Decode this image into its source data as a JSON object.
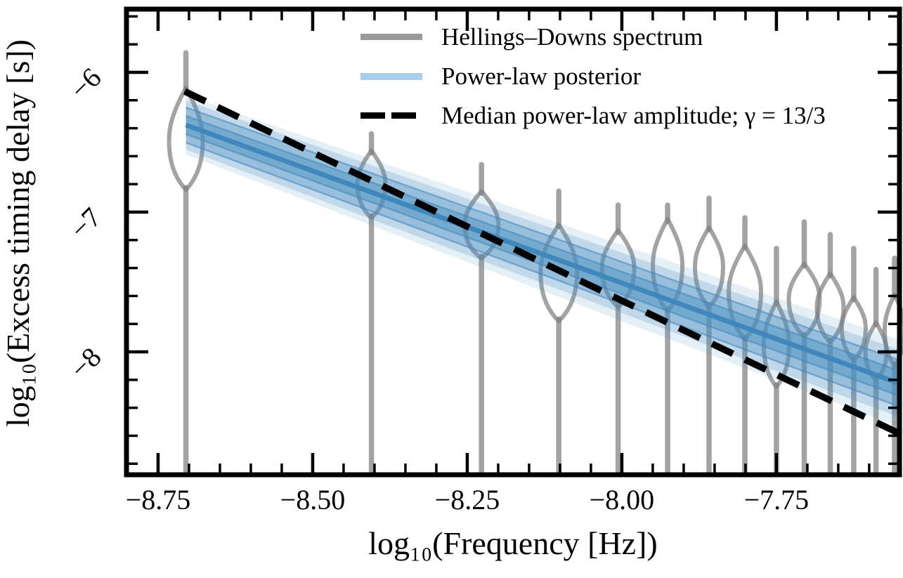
{
  "figure": {
    "background": "#ffffff"
  },
  "legend": {
    "position": "upper center",
    "items": [
      {
        "label": "Hellings–Downs spectrum",
        "swatch": "thick-gray-line",
        "color": "#9a9a9a"
      },
      {
        "label": "Power-law posterior",
        "swatch": "thick-lightblue-line",
        "color": "#aacde9"
      },
      {
        "label": "Median power-law amplitude; γ = 13/3",
        "swatch": "black-dashed-line",
        "color": "#000000"
      }
    ]
  },
  "chart_data": {
    "type": "violin",
    "title": "",
    "xlabel": "log₁₀(Frequency [Hz])",
    "ylabel": "log₁₀(Excess timing delay [s])",
    "xlim": [
      -8.8,
      -7.55
    ],
    "ylim": [
      -8.88,
      -5.55
    ],
    "grid": false,
    "x_major_ticks": [
      -8.75,
      -8.5,
      -8.25,
      -8.0,
      -7.75
    ],
    "x_tick_labels": [
      "−8.75",
      "−8.50",
      "−8.25",
      "−8.00",
      "−7.75"
    ],
    "x_minor_step": 0.05,
    "y_major_ticks": [
      -6,
      -7,
      -8
    ],
    "y_tick_labels": [
      "−6",
      "−7",
      "−8"
    ],
    "y_minor_step": 0.2,
    "series": [
      {
        "name": "Hellings–Downs spectrum",
        "type": "violins",
        "color": "#9a9a9a",
        "note": "unfilled violin posteriors of excess timing delay per frequency bin; lower tails extend to plot bottom",
        "violins": [
          {
            "logf": -8.705,
            "stem_top": -5.86,
            "hi": -6.11,
            "center": -6.49,
            "lo": -6.84,
            "half_width_logf": 0.0273
          },
          {
            "logf": -8.405,
            "stem_top": -6.44,
            "hi": -6.56,
            "center": -6.8,
            "lo": -7.04,
            "half_width_logf": 0.0227
          },
          {
            "logf": -8.227,
            "stem_top": -6.66,
            "hi": -6.85,
            "center": -7.09,
            "lo": -7.33,
            "half_width_logf": 0.0273
          },
          {
            "logf": -8.102,
            "stem_top": -6.85,
            "hi": -7.09,
            "center": -7.43,
            "lo": -7.78,
            "half_width_logf": 0.0295
          },
          {
            "logf": -8.006,
            "stem_top": -6.95,
            "hi": -7.13,
            "center": -7.4,
            "lo": -7.68,
            "half_width_logf": 0.0261
          },
          {
            "logf": -7.926,
            "stem_top": -6.95,
            "hi": -7.05,
            "center": -7.38,
            "lo": -7.71,
            "half_width_logf": 0.0239
          },
          {
            "logf": -7.859,
            "stem_top": -6.9,
            "hi": -7.11,
            "center": -7.39,
            "lo": -7.68,
            "half_width_logf": 0.0227
          },
          {
            "logf": -7.801,
            "stem_top": -7.04,
            "hi": -7.24,
            "center": -7.57,
            "lo": -7.91,
            "half_width_logf": 0.0261
          },
          {
            "logf": -7.75,
            "stem_top": -7.26,
            "hi": -7.64,
            "center": -7.95,
            "lo": -8.25,
            "half_width_logf": 0.0205
          },
          {
            "logf": -7.705,
            "stem_top": -7.07,
            "hi": -7.37,
            "center": -7.62,
            "lo": -7.89,
            "half_width_logf": 0.025
          },
          {
            "logf": -7.663,
            "stem_top": -7.16,
            "hi": -7.44,
            "center": -7.68,
            "lo": -7.93,
            "half_width_logf": 0.0216
          },
          {
            "logf": -7.625,
            "stem_top": -7.26,
            "hi": -7.61,
            "center": -7.83,
            "lo": -8.06,
            "half_width_logf": 0.0193
          },
          {
            "logf": -7.589,
            "stem_top": -7.41,
            "hi": -7.79,
            "center": -8.0,
            "lo": -8.2,
            "half_width_logf": 0.017
          },
          {
            "logf": -7.559,
            "stem_top": -7.33,
            "hi": -7.59,
            "center": -7.84,
            "lo": -8.1,
            "half_width_logf": 0.0159
          }
        ]
      },
      {
        "name": "Power-law posterior",
        "type": "band",
        "color": "#4a8fc0",
        "x": [
          -8.705,
          -7.551
        ],
        "median": [
          -6.377,
          -8.226
        ],
        "half_widths": {
          "inner": [
            0.065,
            0.09
          ],
          "core": [
            0.126,
            0.166
          ],
          "outer": [
            0.176,
            0.241
          ],
          "faint": [
            0.211,
            0.312
          ]
        }
      },
      {
        "name": "Median power-law amplitude; γ = 13/3",
        "type": "dashed-line",
        "color": "#000000",
        "gamma": "13/3",
        "slope_log10": -2.167,
        "x": [
          -8.707,
          -7.551
        ],
        "y": [
          -6.136,
          -8.584
        ]
      }
    ]
  }
}
